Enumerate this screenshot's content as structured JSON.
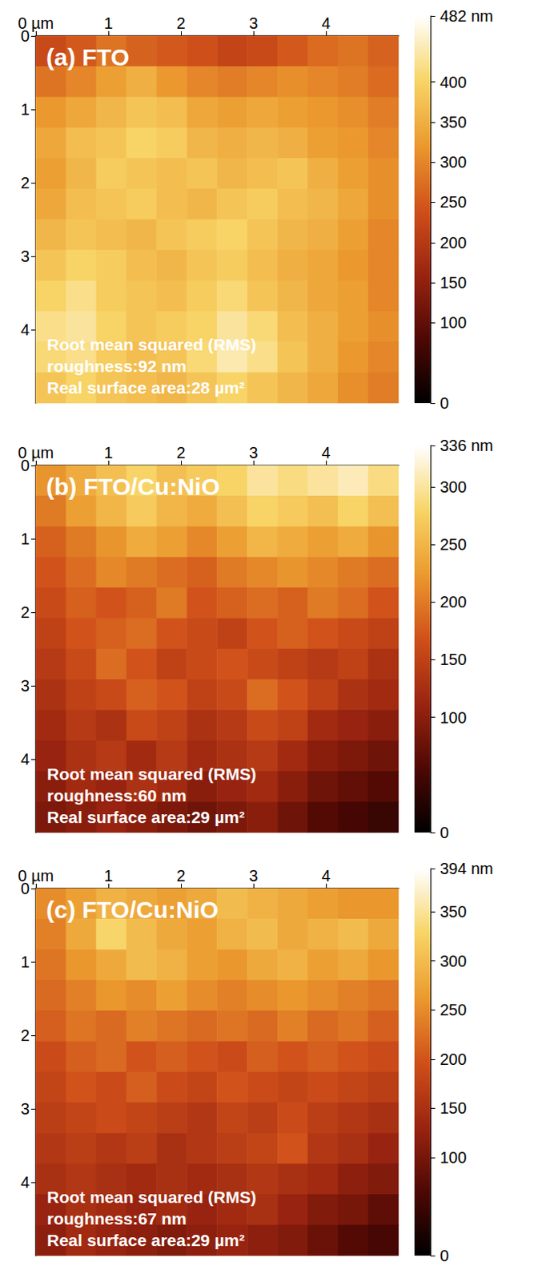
{
  "chart_data": [
    {
      "type": "heatmap",
      "title": "(a) FTO",
      "annotation": [
        "Root mean squared (RMS)",
        "roughness:92 nm",
        "Real surface area:28 µm²"
      ],
      "xlim": [
        0,
        5
      ],
      "xticks": [
        {
          "value": 0,
          "label": "0 µm"
        },
        1,
        2,
        3,
        4
      ],
      "ylim": [
        0,
        5
      ],
      "yticks": [
        0,
        1,
        2,
        3,
        4
      ],
      "colorbar_range": [
        0,
        482
      ],
      "colorbar_ticks": [
        0,
        100,
        150,
        200,
        250,
        300,
        350,
        400,
        {
          "value": 482,
          "label": "482 nm"
        }
      ],
      "values": [
        [
          230,
          250,
          280,
          260,
          250,
          240,
          220,
          230,
          250,
          270,
          280,
          260
        ],
        [
          280,
          300,
          330,
          350,
          320,
          300,
          290,
          300,
          310,
          300,
          290,
          270
        ],
        [
          320,
          340,
          360,
          380,
          370,
          340,
          330,
          340,
          330,
          320,
          310,
          290
        ],
        [
          340,
          370,
          380,
          400,
          390,
          360,
          350,
          360,
          350,
          330,
          320,
          300
        ],
        [
          330,
          360,
          390,
          380,
          370,
          380,
          360,
          370,
          380,
          350,
          330,
          310
        ],
        [
          340,
          370,
          380,
          390,
          370,
          360,
          380,
          390,
          370,
          360,
          340,
          310
        ],
        [
          360,
          380,
          370,
          360,
          380,
          390,
          400,
          380,
          360,
          350,
          330,
          300
        ],
        [
          380,
          400,
          390,
          370,
          360,
          380,
          390,
          370,
          350,
          340,
          320,
          300
        ],
        [
          400,
          420,
          390,
          380,
          370,
          390,
          410,
          380,
          360,
          340,
          330,
          300
        ],
        [
          420,
          430,
          400,
          380,
          390,
          400,
          430,
          410,
          370,
          350,
          330,
          310
        ],
        [
          410,
          420,
          390,
          370,
          380,
          410,
          440,
          420,
          380,
          350,
          320,
          300
        ],
        [
          380,
          400,
          380,
          370,
          360,
          380,
          400,
          380,
          360,
          340,
          310,
          290
        ]
      ]
    },
    {
      "type": "heatmap",
      "title": "(b) FTO/Cu:NiO",
      "annotation": [
        "Root mean squared (RMS)",
        "roughness:60 nm",
        "Real surface area:29 µm²"
      ],
      "xlim": [
        0,
        5
      ],
      "xticks": [
        {
          "value": 0,
          "label": "0 µm"
        },
        1,
        2,
        3,
        4
      ],
      "ylim": [
        0,
        5
      ],
      "yticks": [
        0,
        1,
        2,
        3,
        4
      ],
      "colorbar_range": [
        0,
        336
      ],
      "colorbar_ticks": [
        0,
        100,
        150,
        200,
        250,
        300,
        {
          "value": 336,
          "label": "336 nm"
        }
      ],
      "values": [
        [
          220,
          240,
          260,
          280,
          260,
          270,
          280,
          300,
          290,
          300,
          310,
          290
        ],
        [
          200,
          230,
          250,
          270,
          250,
          240,
          260,
          280,
          270,
          260,
          280,
          260
        ],
        [
          180,
          200,
          220,
          240,
          230,
          210,
          230,
          250,
          240,
          230,
          240,
          220
        ],
        [
          170,
          190,
          210,
          200,
          190,
          180,
          200,
          210,
          220,
          210,
          200,
          190
        ],
        [
          160,
          180,
          170,
          180,
          200,
          170,
          180,
          190,
          180,
          200,
          190,
          170
        ],
        [
          150,
          170,
          180,
          190,
          170,
          160,
          150,
          170,
          180,
          170,
          160,
          150
        ],
        [
          140,
          160,
          190,
          170,
          150,
          160,
          170,
          160,
          150,
          140,
          150,
          130
        ],
        [
          130,
          150,
          160,
          180,
          170,
          150,
          160,
          190,
          170,
          150,
          130,
          120
        ],
        [
          120,
          140,
          130,
          160,
          150,
          130,
          140,
          160,
          150,
          120,
          110,
          100
        ],
        [
          110,
          130,
          140,
          120,
          140,
          120,
          130,
          140,
          120,
          100,
          90,
          80
        ],
        [
          100,
          120,
          110,
          130,
          120,
          100,
          110,
          120,
          100,
          80,
          70,
          60
        ],
        [
          90,
          100,
          110,
          100,
          90,
          80,
          90,
          100,
          80,
          60,
          50,
          40
        ]
      ]
    },
    {
      "type": "heatmap",
      "title": "(c) FTO/Cu:NiO",
      "annotation": [
        "Root mean squared (RMS)",
        "roughness:67 nm",
        "Real surface area:29 µm²"
      ],
      "xlim": [
        0,
        5
      ],
      "xticks": [
        {
          "value": 0,
          "label": "0 µm"
        },
        1,
        2,
        3,
        4
      ],
      "ylim": [
        0,
        5
      ],
      "yticks": [
        0,
        1,
        2,
        3,
        4
      ],
      "colorbar_range": [
        0,
        394
      ],
      "colorbar_ticks": [
        0,
        100,
        150,
        200,
        250,
        300,
        350,
        {
          "value": 394,
          "label": "394 nm"
        }
      ],
      "values": [
        [
          250,
          270,
          290,
          280,
          270,
          280,
          300,
          290,
          280,
          270,
          260,
          260
        ],
        [
          240,
          280,
          330,
          300,
          280,
          270,
          290,
          300,
          280,
          290,
          300,
          280
        ],
        [
          230,
          260,
          280,
          300,
          290,
          270,
          260,
          280,
          290,
          270,
          280,
          260
        ],
        [
          220,
          240,
          260,
          250,
          270,
          250,
          240,
          250,
          260,
          250,
          240,
          230
        ],
        [
          210,
          230,
          220,
          240,
          230,
          220,
          230,
          220,
          240,
          220,
          230,
          210
        ],
        [
          190,
          210,
          220,
          200,
          210,
          200,
          190,
          210,
          200,
          210,
          200,
          190
        ],
        [
          180,
          200,
          190,
          210,
          190,
          180,
          200,
          190,
          180,
          190,
          180,
          170
        ],
        [
          170,
          180,
          190,
          180,
          170,
          160,
          180,
          170,
          190,
          170,
          160,
          150
        ],
        [
          160,
          170,
          160,
          170,
          150,
          160,
          170,
          180,
          200,
          160,
          150,
          130
        ],
        [
          150,
          160,
          150,
          140,
          150,
          140,
          150,
          160,
          150,
          140,
          120,
          110
        ],
        [
          130,
          150,
          140,
          130,
          140,
          130,
          140,
          150,
          130,
          110,
          100,
          80
        ],
        [
          120,
          140,
          130,
          120,
          110,
          120,
          130,
          120,
          110,
          90,
          70,
          60
        ]
      ]
    }
  ]
}
